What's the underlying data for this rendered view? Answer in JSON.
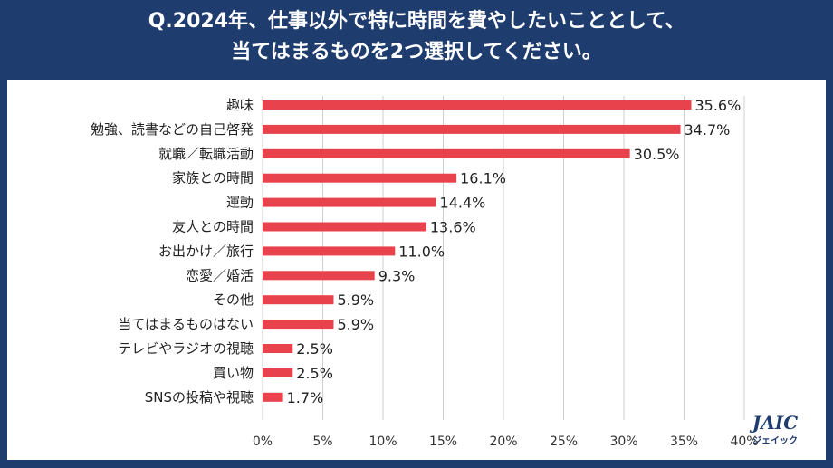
{
  "chart_data": {
    "type": "bar",
    "orientation": "horizontal",
    "title_line1": "Q.2024年、仕事以外で特に時間を費やしたいこととして、",
    "title_line2": "当てはまるものを2つ選択してください。",
    "categories": [
      "趣味",
      "勉強、読書などの自己啓発",
      "就職／転職活動",
      "家族との時間",
      "運動",
      "友人との時間",
      "お出かけ／旅行",
      "恋愛／婚活",
      "その他",
      "当てはまるものはない",
      "テレビやラジオの視聴",
      "買い物",
      "SNSの投稿や視聴"
    ],
    "values": [
      35.6,
      34.7,
      30.5,
      16.1,
      14.4,
      13.6,
      11.0,
      9.3,
      5.9,
      5.9,
      2.5,
      2.5,
      1.7
    ],
    "value_labels": [
      "35.6%",
      "34.7%",
      "30.5%",
      "16.1%",
      "14.4%",
      "13.6%",
      "11.0%",
      "9.3%",
      "5.9%",
      "5.9%",
      "2.5%",
      "2.5%",
      "1.7%"
    ],
    "xlim": [
      0,
      40
    ],
    "xticks": [
      0,
      5,
      10,
      15,
      20,
      25,
      30,
      35,
      40
    ],
    "xtick_labels": [
      "0%",
      "5%",
      "10%",
      "15%",
      "20%",
      "25%",
      "30%",
      "35%",
      "40%"
    ],
    "grid": "vertical",
    "bar_color": "#e8424c"
  },
  "header": {
    "background": "#1f3c6e"
  },
  "logo": {
    "main": "JAIC",
    "sub": "ジェイック"
  }
}
